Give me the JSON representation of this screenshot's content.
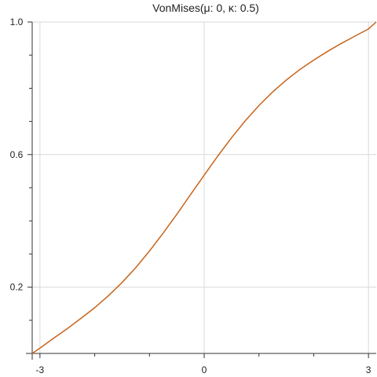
{
  "chart_data": {
    "type": "line",
    "title": "VonMises(μ: 0, κ: 0.5)",
    "xlabel": "",
    "ylabel": "",
    "xlim": [
      -3.14159,
      3.14159
    ],
    "ylim": [
      0,
      1
    ],
    "x_ticks": [
      {
        "value": -3,
        "label": "-3"
      },
      {
        "value": 0,
        "label": "0"
      },
      {
        "value": 3,
        "label": "3"
      }
    ],
    "x_minor_ticks": [
      -2,
      -1,
      1,
      2
    ],
    "y_ticks": [
      {
        "value": 0.2,
        "label": "0.2"
      },
      {
        "value": 0.6,
        "label": "0.6"
      },
      {
        "value": 1.0,
        "label": "1.0"
      }
    ],
    "y_minor_ticks": [
      0.1,
      0.3,
      0.4,
      0.5,
      0.7,
      0.8,
      0.9
    ],
    "grid": true,
    "series": [
      {
        "color": "#c8651b",
        "x": [
          -3.1416,
          -3.0,
          -2.75,
          -2.5,
          -2.25,
          -2.0,
          -1.75,
          -1.5,
          -1.25,
          -1.0,
          -0.75,
          -0.5,
          -0.25,
          0.0,
          0.25,
          0.5,
          0.75,
          1.0,
          1.25,
          1.5,
          1.75,
          2.0,
          2.25,
          2.5,
          2.75,
          3.0,
          3.1416
        ],
        "y": [
          0.0,
          0.016,
          0.046,
          0.075,
          0.106,
          0.138,
          0.174,
          0.214,
          0.259,
          0.309,
          0.363,
          0.42,
          0.479,
          0.538,
          0.596,
          0.651,
          0.702,
          0.748,
          0.789,
          0.825,
          0.857,
          0.885,
          0.911,
          0.935,
          0.957,
          0.979,
          1.0
        ]
      }
    ]
  }
}
